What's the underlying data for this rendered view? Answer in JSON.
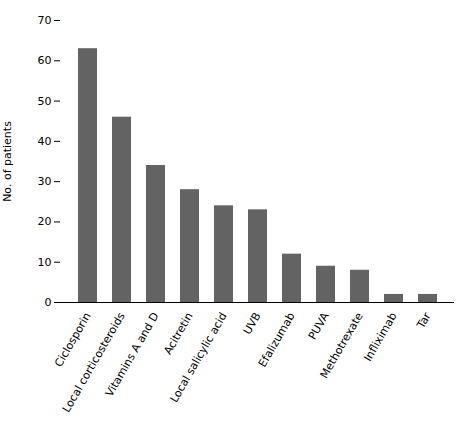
{
  "chart_data": {
    "type": "bar",
    "categories": [
      "Ciclosporin",
      "Local corticosteroids",
      "Vitamins A and D",
      "Acitretin",
      "Local salicylic acid",
      "UVB",
      "Efalizumab",
      "PUVA",
      "Methotrexate",
      "Infliximab",
      "Tar"
    ],
    "values": [
      63,
      46,
      34,
      28,
      24,
      23,
      12,
      9,
      8,
      2,
      2
    ],
    "color": "#636363",
    "ylabel": "No. of patients",
    "ylim": [
      0,
      70
    ],
    "yticks": [
      0,
      10,
      20,
      30,
      40,
      50,
      60,
      70
    ],
    "grid": false
  }
}
